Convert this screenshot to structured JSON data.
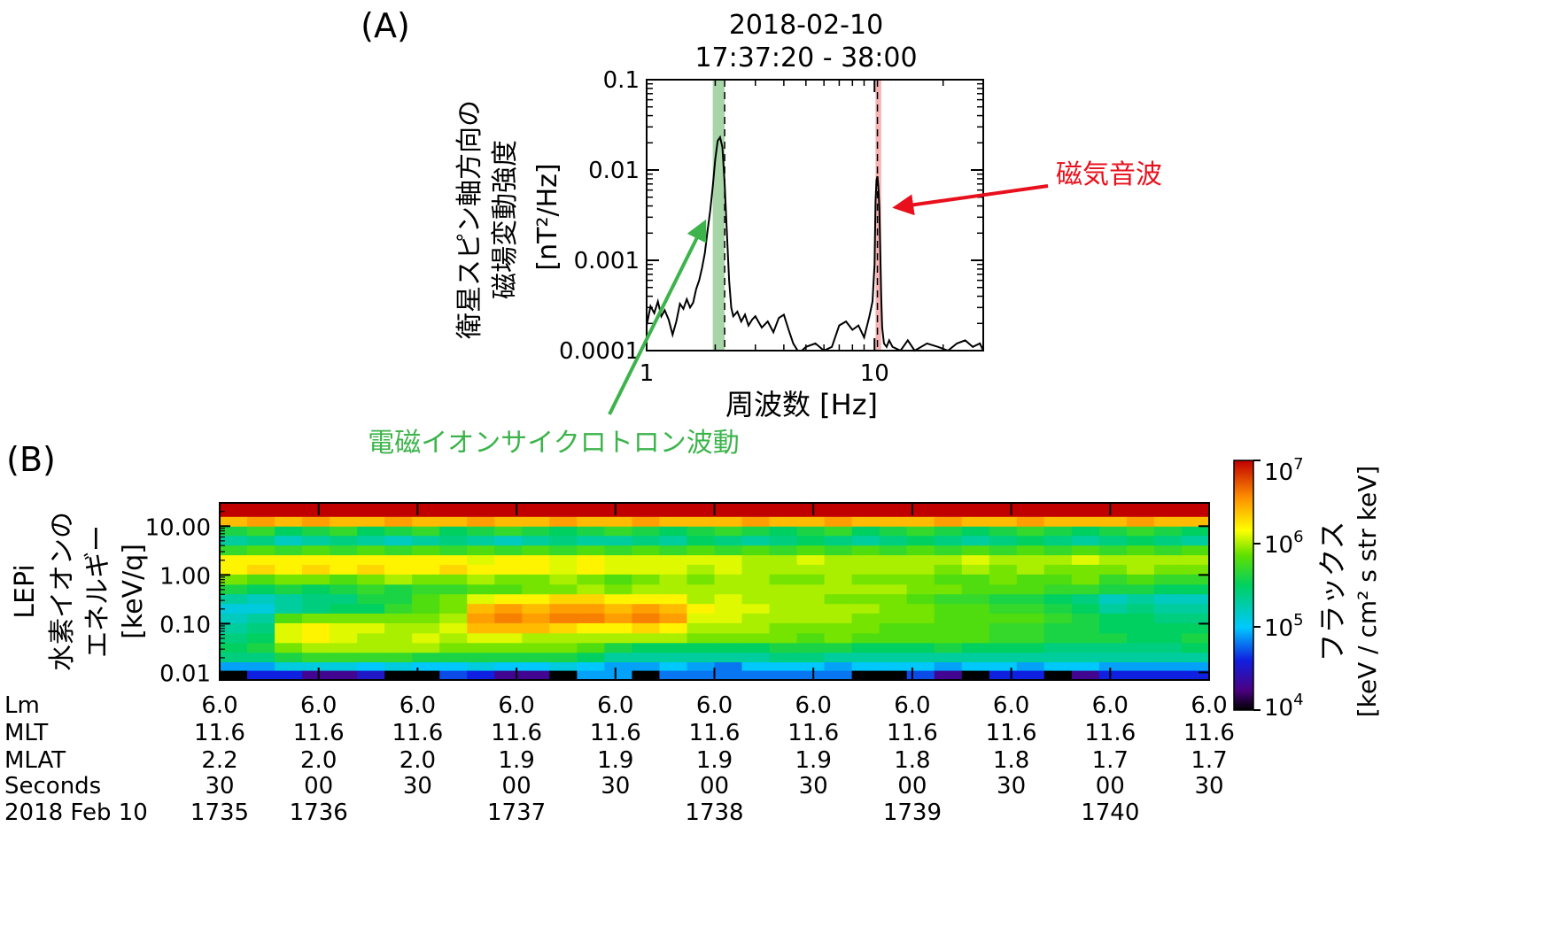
{
  "chart_data": [
    {
      "type": "line",
      "panel_label": "(A)",
      "title_lines": [
        "2018-02-10",
        "17:37:20 - 38:00"
      ],
      "xlabel": "周波数 [Hz]",
      "ylabel_lines": [
        "衛星スピン軸方向の",
        "磁場変動強度"
      ],
      "yunit": "[nT²/Hz]",
      "x_scale": "log",
      "y_scale": "log",
      "xlim": [
        1,
        30
      ],
      "ylim": [
        0.0001,
        0.1
      ],
      "x_ticks": [
        {
          "value": 1,
          "label": "1"
        },
        {
          "value": 10,
          "label": "10"
        }
      ],
      "y_ticks": [
        {
          "value": 0.1,
          "label": "0.1"
        },
        {
          "value": 0.01,
          "label": "0.01"
        },
        {
          "value": 0.001,
          "label": "0.001"
        },
        {
          "value": 0.0001,
          "label": "0.0001"
        }
      ],
      "bands": [
        {
          "from": 1.95,
          "to": 2.2,
          "color": "#a8d5a8"
        },
        {
          "from": 10.1,
          "to": 10.7,
          "color": "#f5b3b3"
        }
      ],
      "dashed_lines": [
        2.2,
        10.3
      ],
      "annotations": [
        {
          "text": "電磁イオンサイクロトロン波動",
          "color": "#3cb44b",
          "arrow_to": [
            2.0,
            0.0035
          ]
        },
        {
          "text": "磁気音波",
          "color": "#e8101c",
          "arrow_to": [
            10.8,
            0.004
          ]
        }
      ],
      "series": [
        {
          "x": [
            1.0,
            1.04,
            1.08,
            1.12,
            1.16,
            1.2,
            1.25,
            1.3,
            1.35,
            1.4,
            1.45,
            1.5,
            1.55,
            1.6,
            1.65,
            1.7,
            1.75,
            1.8,
            1.85,
            1.9,
            1.95,
            2.0,
            2.05,
            2.1,
            2.15,
            2.2,
            2.25,
            2.3,
            2.35,
            2.4,
            2.5,
            2.6,
            2.7,
            2.8,
            2.9,
            3.0,
            3.2,
            3.4,
            3.6,
            3.8,
            4.0,
            4.2,
            4.4,
            4.6,
            4.8,
            5.0,
            5.5,
            6.0,
            6.5,
            7.0,
            7.5,
            8.0,
            8.5,
            9.0,
            9.5,
            9.8,
            10.0,
            10.1,
            10.2,
            10.3,
            10.4,
            10.5,
            10.6,
            10.7,
            10.8,
            11.0,
            11.3,
            11.6,
            12.0,
            13.0,
            14.0,
            15.0,
            17.0,
            19.0,
            21.0,
            23.0,
            25.0,
            27.0,
            29.0,
            30.0
          ],
          "y": [
            0.00019,
            0.00031,
            0.00026,
            0.00035,
            0.00024,
            0.00028,
            0.00022,
            0.00015,
            0.00021,
            0.00033,
            0.00029,
            0.00037,
            0.0003,
            0.00034,
            0.00048,
            0.0006,
            0.00082,
            0.0012,
            0.0021,
            0.0035,
            0.0065,
            0.013,
            0.021,
            0.023,
            0.018,
            0.007,
            0.002,
            0.0006,
            0.0003,
            0.00024,
            0.00027,
            0.00021,
            0.00025,
            0.00019,
            0.00022,
            0.00024,
            0.00018,
            0.00021,
            0.00016,
            0.00023,
            0.00025,
            0.00017,
            0.00012,
            0.0001,
            0.0001,
            0.00011,
            0.00012,
            0.0001,
            0.00011,
            0.00019,
            0.00021,
            0.00017,
            0.00019,
            0.00014,
            0.00024,
            0.00035,
            0.0009,
            0.0045,
            0.0078,
            0.0085,
            0.0065,
            0.0038,
            0.0012,
            0.0004,
            0.00018,
            0.00012,
            0.00011,
            0.00013,
            0.00011,
            0.0001,
            0.00013,
            0.0001,
            0.00012,
            0.00011,
            0.0001,
            0.00012,
            0.00013,
            0.00011,
            0.00012,
            0.0001
          ]
        }
      ]
    },
    {
      "type": "heatmap",
      "panel_label": "(B)",
      "ylabel_lines": [
        "LEPi",
        "水素イオンの",
        "エネルギー",
        "[keV/q]"
      ],
      "y_scale": "log",
      "ylim": [
        0.007,
        30
      ],
      "y_ticks": [
        {
          "value": 10,
          "label": "10.00"
        },
        {
          "value": 1,
          "label": "1.00"
        },
        {
          "value": 0.1,
          "label": "0.10"
        },
        {
          "value": 0.01,
          "label": "0.01"
        }
      ],
      "colorbar": {
        "label": "フラックス",
        "unit": "[keV / cm² s str keV]",
        "scale": "log",
        "range": [
          10000,
          10000000
        ],
        "ticks": [
          {
            "value": 10000000,
            "base": "10",
            "exp": "7"
          },
          {
            "value": 1000000,
            "base": "10",
            "exp": "6"
          },
          {
            "value": 100000,
            "base": "10",
            "exp": "5"
          },
          {
            "value": 10000,
            "base": "10",
            "exp": "4"
          }
        ]
      },
      "time_axis": {
        "row_labels": [
          "Lm",
          "MLT",
          "MLAT",
          "Seconds",
          "2018 Feb 10"
        ],
        "ticks": [
          {
            "Lm": "6.0",
            "MLT": "11.6",
            "MLAT": "2.2",
            "Seconds": "30",
            "hhmm": "1735"
          },
          {
            "Lm": "6.0",
            "MLT": "11.6",
            "MLAT": "2.0",
            "Seconds": "00",
            "hhmm": "1736"
          },
          {
            "Lm": "6.0",
            "MLT": "11.6",
            "MLAT": "2.0",
            "Seconds": "30",
            "hhmm": ""
          },
          {
            "Lm": "6.0",
            "MLT": "11.6",
            "MLAT": "1.9",
            "Seconds": "00",
            "hhmm": "1737"
          },
          {
            "Lm": "6.0",
            "MLT": "11.6",
            "MLAT": "1.9",
            "Seconds": "30",
            "hhmm": ""
          },
          {
            "Lm": "6.0",
            "MLT": "11.6",
            "MLAT": "1.9",
            "Seconds": "00",
            "hhmm": "1738"
          },
          {
            "Lm": "6.0",
            "MLT": "11.6",
            "MLAT": "1.9",
            "Seconds": "30",
            "hhmm": ""
          },
          {
            "Lm": "6.0",
            "MLT": "11.6",
            "MLAT": "1.8",
            "Seconds": "00",
            "hhmm": "1739"
          },
          {
            "Lm": "6.0",
            "MLT": "11.6",
            "MLAT": "1.8",
            "Seconds": "30",
            "hhmm": ""
          },
          {
            "Lm": "6.0",
            "MLT": "11.6",
            "MLAT": "1.7",
            "Seconds": "00",
            "hhmm": "1740"
          },
          {
            "Lm": "6.0",
            "MLT": "11.6",
            "MLAT": "1.7",
            "Seconds": "30",
            "hhmm": ""
          }
        ]
      },
      "energy_bins_keV": [
        20,
        12,
        8,
        5,
        3.2,
        2,
        1.3,
        0.8,
        0.5,
        0.32,
        0.2,
        0.13,
        0.08,
        0.05,
        0.032,
        0.02,
        0.013,
        0.009
      ],
      "time_columns": 36,
      "log10_flux": [
        [
          7.0,
          7.0,
          7.0,
          7.0,
          7.0,
          7.0,
          7.0,
          7.0,
          7.0,
          7.0,
          7.0,
          7.0,
          7.0,
          7.0,
          7.0,
          7.0,
          7.0,
          7.0,
          7.0,
          7.0,
          7.0,
          7.0,
          7.0,
          7.0,
          7.0,
          7.0,
          7.0,
          7.0,
          7.0,
          7.0,
          7.0,
          7.0,
          7.0,
          7.0,
          7.0,
          7.0
        ],
        [
          6.4,
          6.5,
          6.4,
          6.5,
          6.4,
          6.4,
          6.5,
          6.4,
          6.4,
          6.5,
          6.4,
          6.4,
          6.5,
          6.4,
          6.4,
          6.5,
          6.4,
          6.4,
          6.4,
          6.5,
          6.4,
          6.4,
          6.5,
          6.4,
          6.4,
          6.4,
          6.5,
          6.4,
          6.4,
          6.5,
          6.4,
          6.4,
          6.4,
          6.5,
          6.4,
          6.4
        ],
        [
          5.6,
          5.7,
          5.5,
          5.6,
          5.7,
          5.5,
          5.6,
          5.7,
          5.5,
          5.6,
          5.7,
          5.6,
          5.5,
          5.6,
          5.7,
          5.6,
          5.5,
          5.6,
          5.7,
          5.6,
          5.5,
          5.6,
          5.7,
          5.5,
          5.6,
          5.7,
          5.6,
          5.5,
          5.6,
          5.7,
          5.6,
          5.5,
          5.6,
          5.7,
          5.6,
          5.5
        ],
        [
          5.3,
          5.4,
          5.2,
          5.3,
          5.4,
          5.3,
          5.2,
          5.3,
          5.4,
          5.3,
          5.2,
          5.3,
          5.4,
          5.3,
          5.3,
          5.4,
          5.3,
          5.5,
          5.4,
          5.3,
          5.4,
          5.5,
          5.4,
          5.3,
          5.4,
          5.5,
          5.4,
          5.3,
          5.4,
          5.5,
          5.4,
          5.3,
          5.4,
          5.5,
          5.4,
          5.3
        ],
        [
          5.7,
          5.8,
          5.7,
          5.8,
          5.7,
          5.8,
          5.7,
          5.8,
          5.7,
          5.8,
          5.7,
          5.8,
          5.7,
          5.8,
          5.7,
          5.8,
          5.7,
          5.8,
          5.7,
          5.8,
          5.7,
          5.8,
          5.7,
          5.8,
          5.7,
          5.8,
          5.7,
          5.8,
          5.7,
          5.8,
          5.7,
          5.8,
          5.7,
          5.8,
          5.7,
          5.8
        ],
        [
          6.2,
          6.2,
          6.2,
          6.2,
          6.2,
          6.2,
          6.2,
          6.2,
          6.2,
          6.1,
          6.2,
          6.2,
          6.1,
          6.2,
          6.1,
          6.1,
          6.1,
          6.1,
          6.1,
          6.0,
          6.0,
          6.1,
          6.0,
          6.0,
          6.0,
          6.0,
          6.0,
          6.1,
          6.0,
          6.0,
          6.0,
          6.1,
          6.0,
          6.0,
          6.0,
          6.0
        ],
        [
          6.2,
          6.3,
          6.2,
          6.3,
          6.2,
          6.3,
          6.2,
          6.2,
          6.3,
          6.2,
          6.2,
          6.2,
          6.1,
          6.2,
          6.1,
          6.1,
          6.1,
          6.0,
          6.1,
          6.0,
          6.0,
          6.0,
          6.0,
          6.0,
          6.0,
          6.0,
          5.9,
          6.0,
          5.9,
          6.0,
          5.9,
          5.9,
          5.9,
          6.0,
          5.9,
          5.9
        ],
        [
          5.9,
          5.8,
          5.9,
          5.9,
          5.8,
          5.9,
          6.0,
          5.9,
          5.9,
          6.0,
          5.9,
          5.9,
          6.0,
          5.9,
          5.8,
          5.9,
          6.0,
          5.9,
          6.0,
          6.0,
          5.9,
          5.9,
          6.0,
          5.9,
          5.9,
          5.9,
          5.8,
          5.8,
          5.9,
          5.8,
          5.8,
          5.9,
          5.7,
          5.8,
          5.7,
          5.7
        ],
        [
          5.6,
          5.5,
          5.6,
          5.5,
          5.6,
          5.7,
          5.6,
          5.7,
          5.7,
          5.8,
          5.8,
          5.9,
          5.9,
          6.0,
          5.9,
          6.0,
          6.0,
          6.0,
          6.0,
          6.0,
          6.0,
          6.0,
          6.0,
          6.0,
          6.0,
          5.9,
          5.9,
          5.8,
          5.8,
          5.8,
          5.7,
          5.7,
          5.6,
          5.6,
          5.5,
          5.5
        ],
        [
          5.3,
          5.2,
          5.3,
          5.4,
          5.4,
          5.6,
          5.6,
          5.8,
          5.9,
          6.1,
          6.2,
          6.2,
          6.3,
          6.3,
          6.2,
          6.2,
          6.2,
          6.0,
          6.1,
          6.0,
          6.0,
          6.0,
          5.9,
          5.9,
          5.9,
          5.8,
          5.7,
          5.7,
          5.6,
          5.6,
          5.5,
          5.4,
          5.2,
          5.3,
          5.2,
          5.2
        ],
        [
          5.1,
          5.1,
          5.3,
          5.4,
          5.5,
          5.5,
          5.7,
          5.8,
          5.9,
          6.4,
          6.5,
          6.4,
          6.5,
          6.5,
          6.4,
          6.5,
          6.4,
          6.2,
          6.1,
          6.1,
          6.0,
          6.0,
          6.0,
          6.0,
          5.9,
          5.9,
          5.8,
          5.8,
          5.7,
          5.7,
          5.6,
          5.5,
          5.3,
          5.4,
          5.3,
          5.3
        ],
        [
          5.2,
          5.3,
          5.8,
          5.9,
          5.9,
          5.9,
          5.9,
          5.9,
          6.0,
          6.5,
          6.6,
          6.5,
          6.6,
          6.6,
          6.5,
          6.6,
          6.5,
          6.1,
          6.1,
          6.0,
          6.0,
          6.0,
          6.0,
          5.9,
          5.9,
          5.9,
          5.8,
          5.8,
          5.8,
          5.8,
          5.7,
          5.6,
          5.5,
          5.5,
          5.4,
          5.4
        ],
        [
          5.3,
          5.4,
          6.1,
          6.2,
          6.1,
          6.1,
          6.0,
          6.0,
          6.1,
          6.4,
          6.4,
          6.4,
          6.3,
          6.2,
          6.2,
          6.3,
          6.2,
          6.0,
          6.0,
          6.0,
          5.9,
          5.9,
          5.9,
          5.9,
          5.8,
          5.8,
          5.8,
          5.8,
          5.7,
          5.7,
          5.6,
          5.6,
          5.5,
          5.5,
          5.5,
          5.5
        ],
        [
          5.4,
          5.5,
          6.1,
          6.2,
          6.1,
          6.0,
          6.0,
          6.1,
          6.0,
          6.1,
          6.1,
          6.0,
          6.0,
          6.0,
          6.0,
          6.0,
          6.0,
          5.9,
          5.9,
          5.9,
          5.9,
          5.8,
          5.9,
          5.8,
          5.8,
          5.8,
          5.8,
          5.8,
          5.7,
          5.7,
          5.6,
          5.6,
          5.6,
          5.5,
          5.5,
          5.6
        ],
        [
          5.5,
          5.6,
          5.9,
          6.0,
          6.0,
          6.0,
          6.0,
          6.0,
          5.9,
          5.9,
          5.9,
          5.9,
          5.9,
          5.8,
          5.6,
          5.5,
          5.5,
          5.5,
          5.5,
          5.5,
          5.6,
          5.6,
          5.6,
          5.5,
          5.5,
          5.5,
          5.6,
          5.5,
          5.5,
          5.5,
          5.4,
          5.4,
          5.4,
          5.4,
          5.4,
          5.5
        ],
        [
          5.4,
          5.4,
          5.6,
          5.7,
          5.7,
          5.7,
          5.7,
          5.6,
          5.6,
          5.6,
          5.6,
          5.6,
          5.6,
          5.5,
          5.3,
          5.3,
          5.3,
          5.3,
          5.3,
          5.3,
          5.4,
          5.4,
          5.3,
          5.3,
          5.3,
          5.3,
          5.3,
          5.3,
          5.3,
          5.3,
          5.3,
          5.3,
          5.3,
          5.3,
          5.3,
          5.3
        ],
        [
          4.9,
          4.9,
          5.1,
          5.1,
          5.1,
          5.0,
          5.1,
          5.0,
          5.0,
          5.1,
          5.0,
          5.0,
          5.1,
          5.0,
          4.9,
          4.9,
          5.0,
          4.9,
          4.8,
          5.0,
          5.0,
          5.0,
          4.9,
          5.0,
          5.0,
          5.0,
          4.9,
          5.0,
          5.0,
          4.9,
          5.0,
          5.0,
          4.9,
          4.9,
          4.9,
          4.9
        ],
        [
          4.0,
          4.6,
          4.6,
          4.3,
          4.3,
          4.5,
          4.0,
          4.0,
          4.7,
          4.6,
          4.3,
          4.3,
          4.0,
          4.9,
          4.9,
          4.0,
          4.8,
          4.8,
          4.8,
          4.8,
          4.8,
          4.8,
          4.8,
          4.0,
          4.0,
          4.7,
          4.3,
          4.0,
          4.6,
          4.6,
          4.0,
          4.3,
          4.6,
          4.6,
          4.6,
          4.6
        ]
      ]
    }
  ]
}
